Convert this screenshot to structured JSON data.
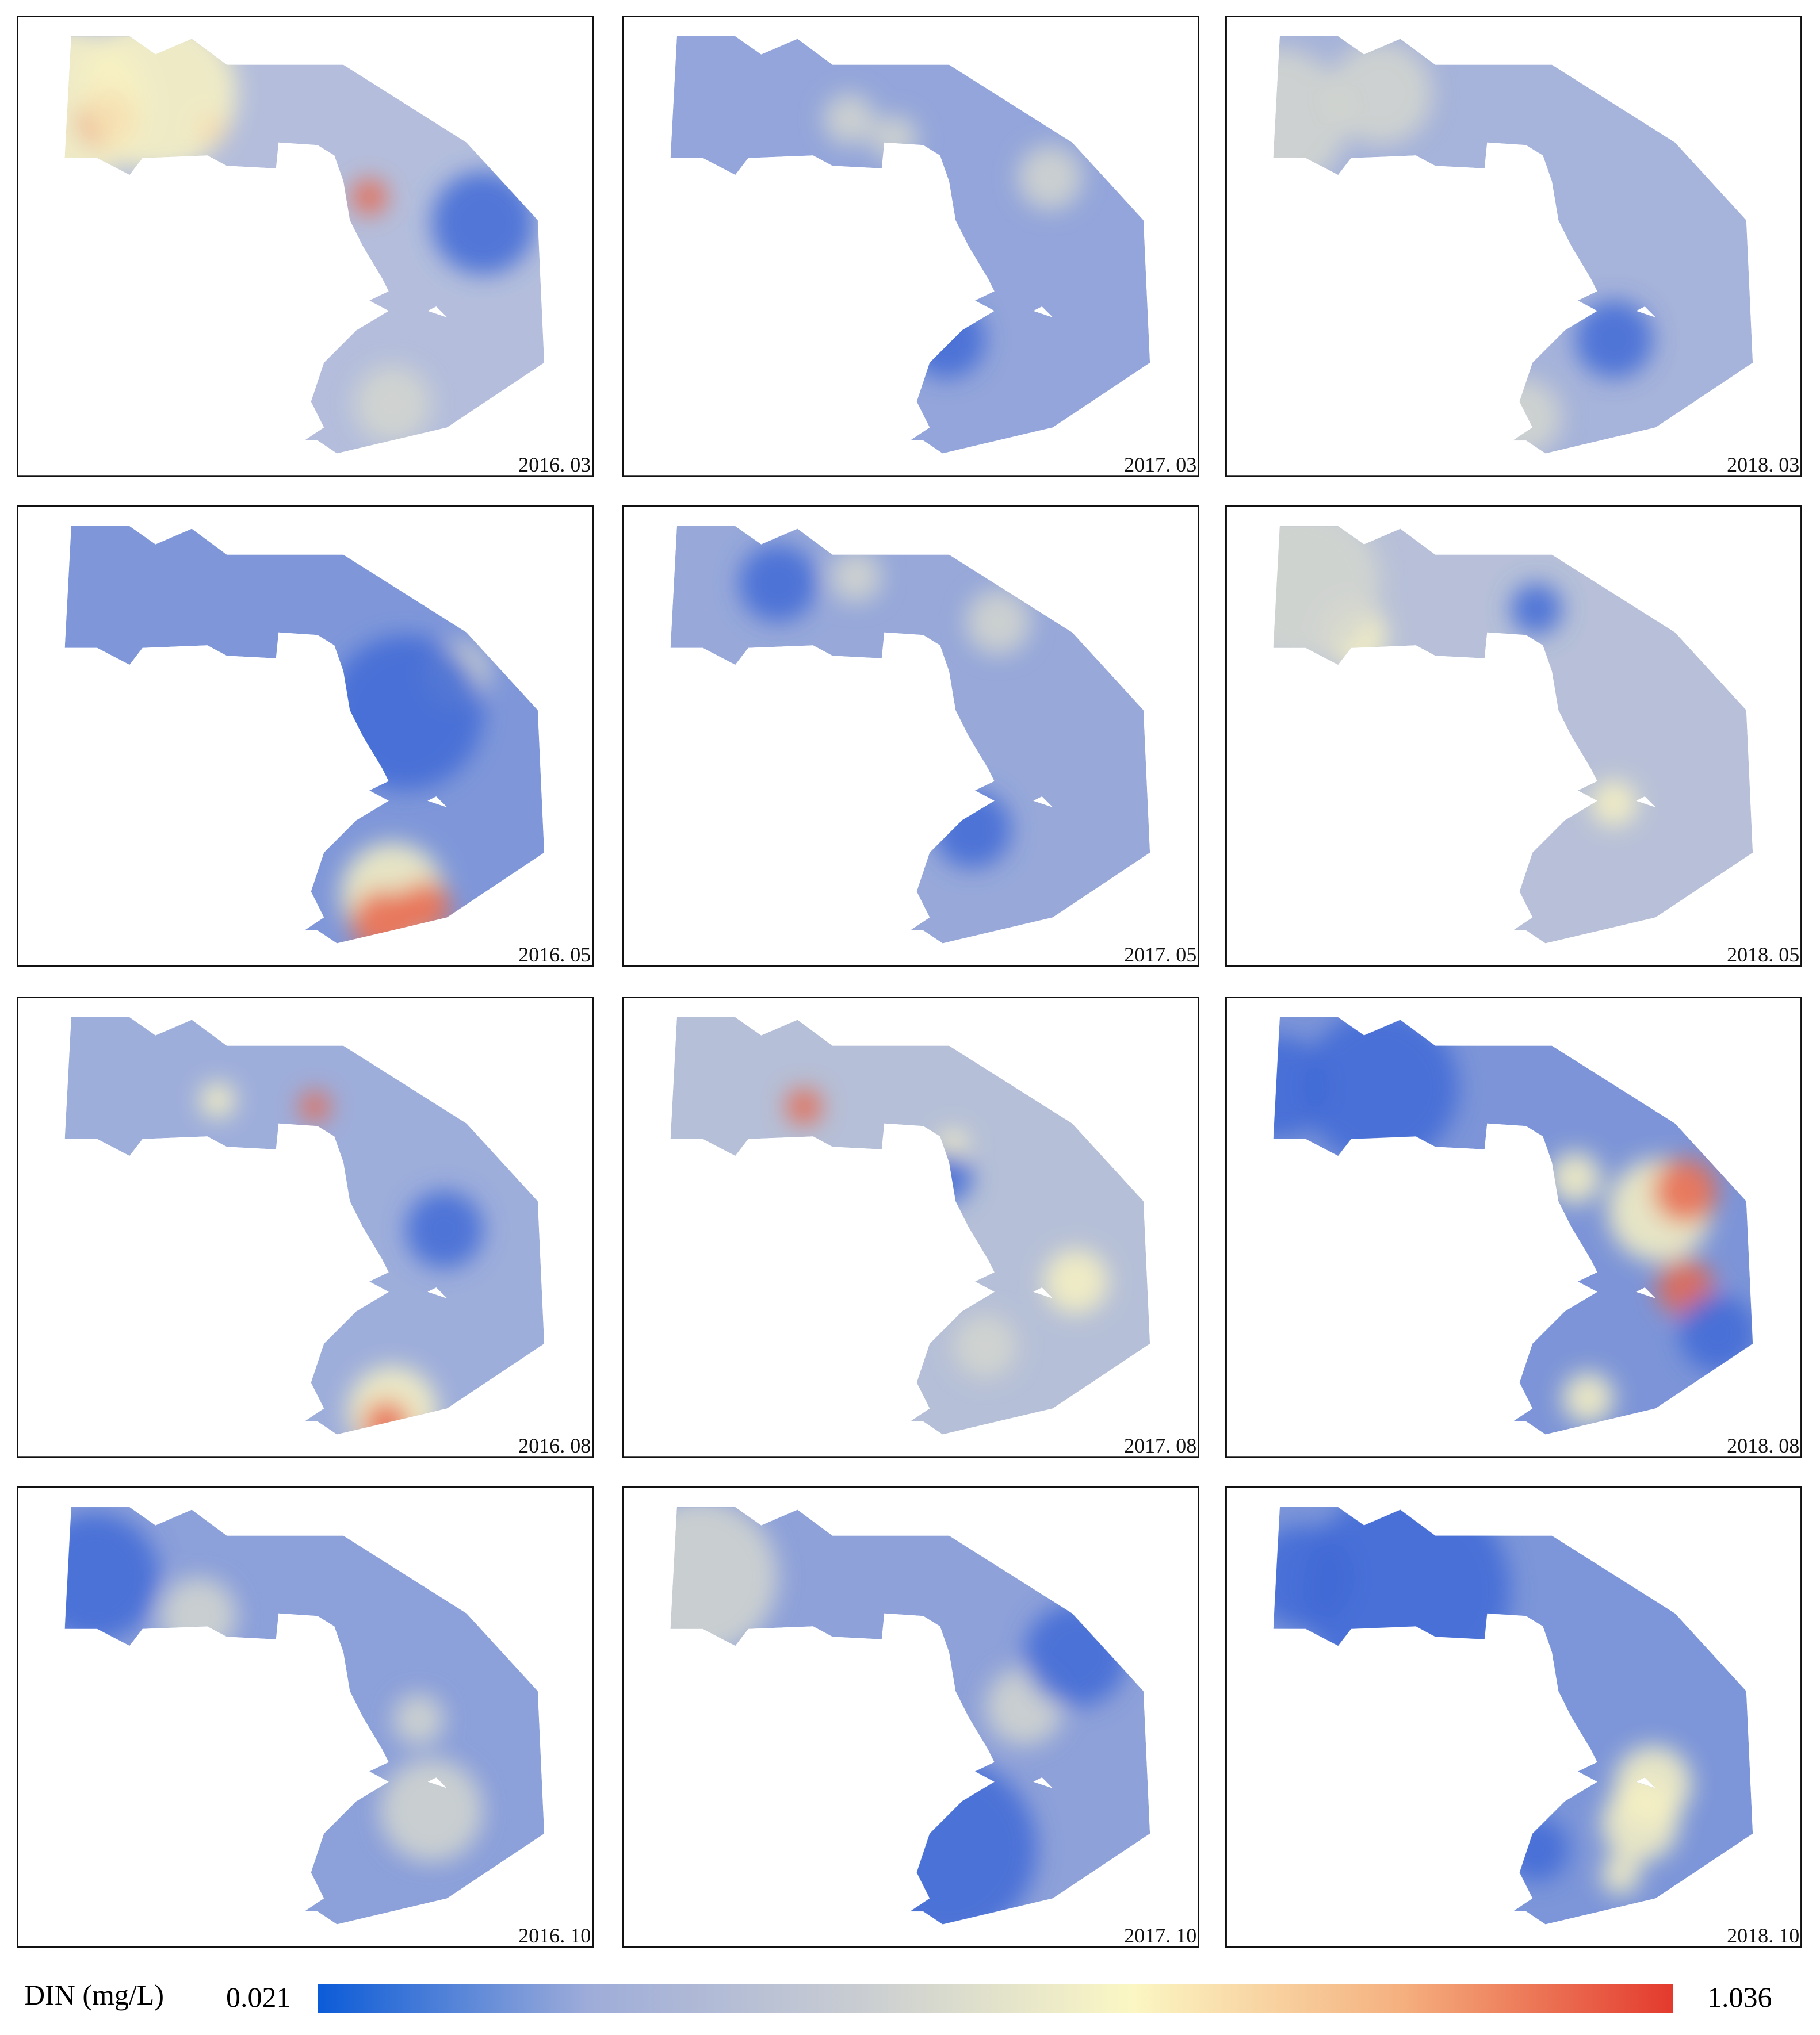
{
  "panels": [
    {
      "label": "2016. 03",
      "fill": "#b4bedc"
    },
    {
      "label": "2017. 03",
      "fill": "#93a5da"
    },
    {
      "label": "2018. 03",
      "fill": "#a6b3da"
    },
    {
      "label": "2016. 05",
      "fill": "#7f97d9"
    },
    {
      "label": "2017. 05",
      "fill": "#97a8d9"
    },
    {
      "label": "2018. 05",
      "fill": "#b7c0d8"
    },
    {
      "label": "2016. 08",
      "fill": "#9eaedb"
    },
    {
      "label": "2017. 08",
      "fill": "#b5bfd7"
    },
    {
      "label": "2018. 08",
      "fill": "#7d95d8"
    },
    {
      "label": "2016. 10",
      "fill": "#8ca0da"
    },
    {
      "label": "2017. 10",
      "fill": "#8ea1d9"
    },
    {
      "label": "2018. 10",
      "fill": "#7d96d9"
    }
  ],
  "colorbar": {
    "title": "DIN (mg/L)",
    "min": 0.021,
    "max": 1.036,
    "colors": [
      "#0b5bd8",
      "#9eacd9",
      "#c9cdd2",
      "#fbf7c4",
      "#f5b07f",
      "#e33a2d"
    ]
  }
}
